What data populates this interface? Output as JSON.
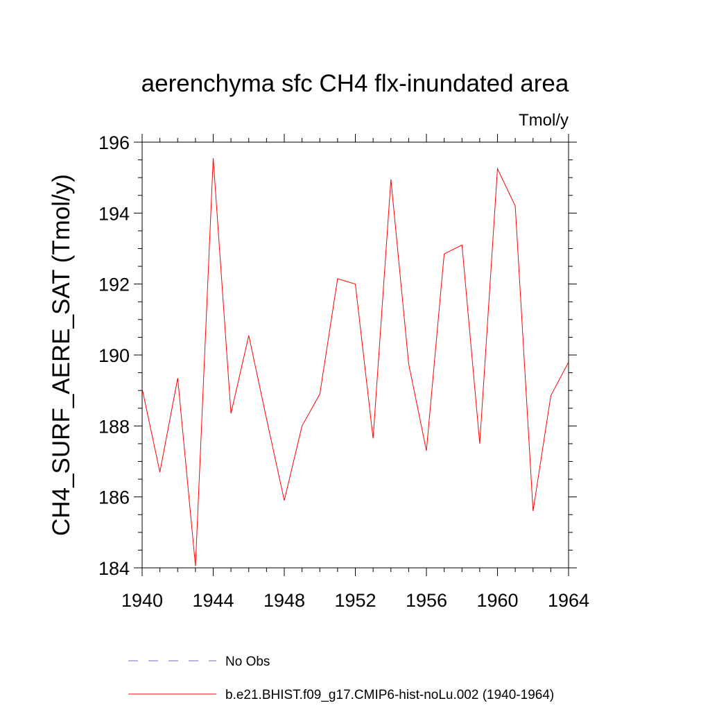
{
  "chart_data": {
    "type": "line",
    "title": "aerenchyma sfc CH4 flx-inundated area",
    "units": "Tmol/y",
    "ylabel": "CH4_SURF_AERE_SAT  (Tmol/y)",
    "xlabel": "",
    "xlim": [
      1940,
      1964
    ],
    "ylim": [
      184,
      196
    ],
    "xticks": [
      1940,
      1944,
      1948,
      1952,
      1956,
      1960,
      1964
    ],
    "yticks": [
      184,
      186,
      188,
      190,
      192,
      194,
      196
    ],
    "grid": false,
    "legend_position": "bottom",
    "series": [
      {
        "name": "b.e21.BHIST.f09_g17.CMIP6-hist-noLu.002 (1940-1964)",
        "color": "#ff0000",
        "style": "solid",
        "x": [
          1940,
          1941,
          1942,
          1943,
          1944,
          1945,
          1946,
          1947,
          1948,
          1949,
          1950,
          1951,
          1952,
          1953,
          1954,
          1955,
          1956,
          1957,
          1958,
          1959,
          1960,
          1961,
          1962,
          1963,
          1964
        ],
        "y": [
          189.05,
          186.7,
          189.35,
          184.05,
          195.55,
          188.35,
          190.55,
          188.2,
          185.9,
          188.0,
          188.9,
          192.15,
          192.0,
          187.65,
          194.95,
          189.75,
          187.3,
          192.85,
          193.1,
          187.5,
          195.25,
          194.2,
          185.6,
          188.85,
          189.8
        ]
      }
    ],
    "legend": [
      {
        "label": "No Obs",
        "color": "#6a6acd",
        "style": "dashed"
      },
      {
        "label": "b.e21.BHIST.f09_g17.CMIP6-hist-noLu.002 (1940-1964)",
        "color": "#ff0000",
        "style": "solid"
      }
    ]
  }
}
